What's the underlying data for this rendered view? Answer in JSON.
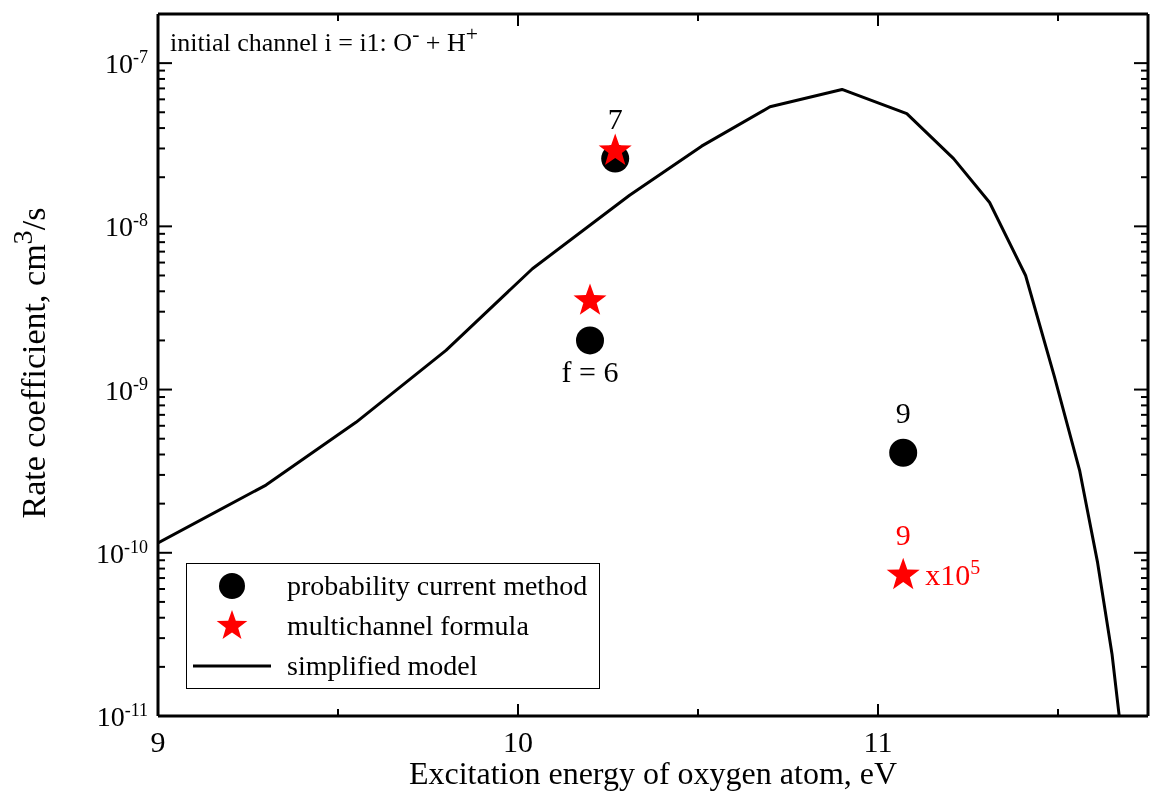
{
  "chart_data": {
    "type": "scatter",
    "title": "initial channel i = i1: O$^{-}$ + H$^{+}$",
    "xlabel": "Excitation energy of oxygen atom, eV",
    "ylabel": "Rate coefficient, cm$^{3}$/s",
    "log": "y",
    "xlim": [
      9,
      11.75
    ],
    "xticks": [
      9,
      {
        "value": 9.5,
        "label": null
      },
      10,
      {
        "value": 10.5,
        "label": null
      },
      11,
      {
        "value": 11.5,
        "label": null
      }
    ],
    "ylim": [
      1e-11,
      2e-07
    ],
    "yticks": [
      {
        "value": 1e-11,
        "label": "10$^{-11}$"
      },
      {
        "value": 2e-11,
        "label": null
      },
      {
        "value": 3e-11,
        "label": null
      },
      {
        "value": 4e-11,
        "label": null
      },
      {
        "value": 5e-11,
        "label": null
      },
      {
        "value": 6e-11,
        "label": null
      },
      {
        "value": 7e-11,
        "label": null
      },
      {
        "value": 8e-11,
        "label": null
      },
      {
        "value": 9e-11,
        "label": null
      },
      {
        "value": 1e-10,
        "label": "10$^{-10}$"
      },
      {
        "value": 2e-10,
        "label": null
      },
      {
        "value": 3e-10,
        "label": null
      },
      {
        "value": 4e-10,
        "label": null
      },
      {
        "value": 5e-10,
        "label": null
      },
      {
        "value": 6e-10,
        "label": null
      },
      {
        "value": 7e-10,
        "label": null
      },
      {
        "value": 8e-10,
        "label": null
      },
      {
        "value": 9e-10,
        "label": null
      },
      {
        "value": 1e-09,
        "label": "10$^{-9}$"
      },
      {
        "value": 2e-09,
        "label": null
      },
      {
        "value": 3e-09,
        "label": null
      },
      {
        "value": 4e-09,
        "label": null
      },
      {
        "value": 5e-09,
        "label": null
      },
      {
        "value": 6e-09,
        "label": null
      },
      {
        "value": 7e-09,
        "label": null
      },
      {
        "value": 8e-09,
        "label": null
      },
      {
        "value": 9e-09,
        "label": null
      },
      {
        "value": 1e-08,
        "label": "10$^{-8}$"
      },
      {
        "value": 2e-08,
        "label": null
      },
      {
        "value": 3e-08,
        "label": null
      },
      {
        "value": 4e-08,
        "label": null
      },
      {
        "value": 5e-08,
        "label": null
      },
      {
        "value": 6e-08,
        "label": null
      },
      {
        "value": 7e-08,
        "label": null
      },
      {
        "value": 8e-08,
        "label": null
      },
      {
        "value": 9e-08,
        "label": null
      },
      {
        "value": 1e-07,
        "label": "10$^{-7}$"
      },
      {
        "value": 2e-07,
        "label": null
      }
    ],
    "grid": false,
    "legend": "bottom left",
    "series": [
      {
        "name": "probability current method",
        "marker": "circle",
        "color": "#000000",
        "x": [
          10.27,
          10.2,
          11.07
        ],
        "values": [
          2.6e-08,
          2e-09,
          4.1e-10
        ]
      },
      {
        "name": "multichannel formula",
        "marker": "star",
        "color": "#ff0000",
        "x": [
          10.27,
          10.2,
          11.07
        ],
        "values": [
          2.9e-08,
          3.5e-09,
          7.3e-11
        ]
      },
      {
        "name": "simplified model",
        "type": "line",
        "marker": "none",
        "line_style": "solid",
        "color": "#000000",
        "x": [
          9,
          9.3,
          9.55,
          9.8,
          10.04,
          10.31,
          10.51,
          10.7,
          10.9,
          11.08,
          11.21,
          11.31,
          11.41,
          11.49,
          11.56,
          11.61,
          11.65,
          11.67
        ],
        "values": [
          1.15e-10,
          2.6e-10,
          6.3e-10,
          1.74e-09,
          5.5e-09,
          1.55e-08,
          3.1e-08,
          5.4e-08,
          6.9e-08,
          4.9e-08,
          2.6e-08,
          1.4e-08,
          5e-09,
          1.2e-09,
          3.2e-10,
          8.7e-11,
          2.4e-11,
          1e-11
        ]
      }
    ],
    "annotations": [
      {
        "text": "7",
        "x": 10.27,
        "y": 2.6e-08
      },
      {
        "text": "f = 6",
        "x": 10.2,
        "y": 2e-09
      },
      {
        "text": "9",
        "x": 11.07,
        "y": 4.1e-10
      },
      {
        "text": "9",
        "x": 11.07,
        "y": 7.3e-11
      },
      {
        "text": "x10$^{5}$",
        "x": 11.07,
        "y": 7.3e-11
      }
    ]
  }
}
